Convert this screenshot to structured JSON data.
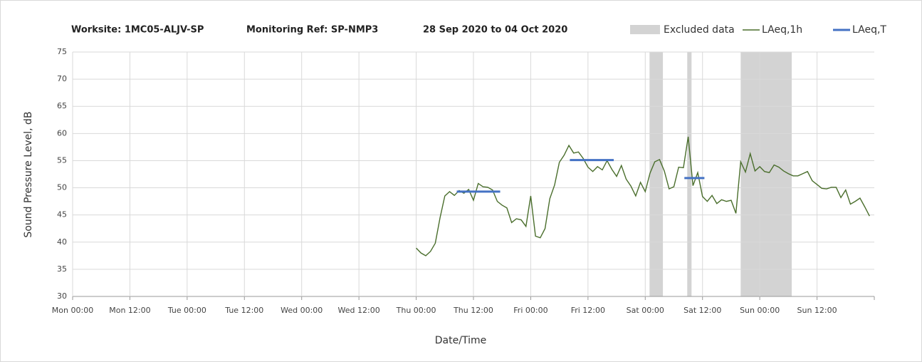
{
  "chart_data": {
    "type": "line",
    "title_parts": [
      "Worksite: 1MC05-ALJV-SP",
      "Monitoring Ref: SP-NMP3",
      "28 Sep 2020 to 04 Oct 2020"
    ],
    "x_label": "Date/Time",
    "y_label": "Sound Pressure Level, dB",
    "xlim": [
      0,
      168
    ],
    "xticks": [
      {
        "value": 0,
        "label": "Mon 00:00"
      },
      {
        "value": 12,
        "label": "Mon 12:00"
      },
      {
        "value": 24,
        "label": "Tue 00:00"
      },
      {
        "value": 36,
        "label": "Tue 12:00"
      },
      {
        "value": 48,
        "label": "Wed 00:00"
      },
      {
        "value": 60,
        "label": "Wed 12:00"
      },
      {
        "value": 72,
        "label": "Thu 00:00"
      },
      {
        "value": 84,
        "label": "Thu 12:00"
      },
      {
        "value": 96,
        "label": "Fri 00:00"
      },
      {
        "value": 108,
        "label": "Fri 12:00"
      },
      {
        "value": 120,
        "label": "Sat 00:00"
      },
      {
        "value": 132,
        "label": "Sat 12:00"
      },
      {
        "value": 144,
        "label": "Sun 00:00"
      },
      {
        "value": 156,
        "label": "Sun 12:00"
      }
    ],
    "ylim": [
      30,
      75
    ],
    "yticks": [
      30,
      35,
      40,
      45,
      50,
      55,
      60,
      65,
      70,
      75
    ],
    "grid": true,
    "excluded": {
      "name": "Excluded data",
      "color": "#d3d3d3",
      "regions": [
        {
          "start": 120.9,
          "end": 123.7
        },
        {
          "start": 128.8,
          "end": 129.7
        },
        {
          "start": 140,
          "end": 150.7
        }
      ]
    },
    "series": [
      {
        "name": "LAeq,1h",
        "color": "#4a6e2c",
        "x": [
          72,
          73,
          74,
          75,
          76,
          77,
          78,
          79,
          80,
          81,
          82,
          83,
          84,
          85,
          86,
          87,
          88,
          89,
          90,
          91,
          92,
          93,
          94,
          95,
          96,
          97,
          98,
          99,
          100,
          101,
          102,
          103,
          104,
          105,
          106,
          107,
          108,
          109,
          110,
          111,
          112,
          113,
          114,
          115,
          116,
          117,
          118,
          119,
          120,
          121,
          122,
          123,
          124,
          125,
          126,
          127,
          128,
          129,
          130,
          131,
          132,
          133,
          134,
          135,
          136,
          137,
          138,
          139,
          140,
          141,
          142,
          143,
          144,
          145,
          146,
          147,
          148,
          149,
          150,
          151,
          152,
          153,
          154,
          155,
          156,
          157,
          158,
          159,
          160,
          161,
          162,
          163,
          164,
          165,
          166,
          167
        ],
        "values": [
          38.9,
          38,
          37.5,
          38.3,
          39.8,
          44.5,
          48.5,
          49.3,
          48.6,
          49.5,
          49,
          49.7,
          47.7,
          50.8,
          50.2,
          50.1,
          49.6,
          47.5,
          46.8,
          46.3,
          43.6,
          44.3,
          44.1,
          42.9,
          48.5,
          41.1,
          40.8,
          42.5,
          48,
          50.5,
          54.7,
          56,
          57.8,
          56.4,
          56.6,
          55.4,
          53.8,
          53,
          53.9,
          53.3,
          55,
          53.4,
          52.1,
          54.1,
          51.6,
          50.3,
          48.5,
          51,
          49.3,
          52.7,
          54.8,
          55.2,
          53.1,
          49.8,
          50.2,
          53.8,
          53.7,
          59.4,
          50.4,
          52.8,
          48.4,
          47.5,
          48.6,
          47.1,
          47.8,
          47.5,
          47.7,
          45.3,
          54.8,
          52.9,
          56.3,
          53.1,
          53.9,
          53,
          52.8,
          54.2,
          53.8,
          53.1,
          52.6,
          52.2,
          52.2,
          52.6,
          53,
          51.3,
          50.6,
          49.9,
          49.8,
          50.1,
          50.1,
          48.2,
          49.6,
          47,
          47.5,
          48.1,
          46.5,
          44.8
        ]
      },
      {
        "name": "LAeq,T",
        "color": "#4472c4",
        "segments": [
          {
            "start": 80.5,
            "end": 89.6,
            "value": 49.3
          },
          {
            "start": 104.2,
            "end": 113.4,
            "value": 55.1
          },
          {
            "start": 128.2,
            "end": 132.4,
            "value": 51.8
          }
        ]
      }
    ]
  }
}
